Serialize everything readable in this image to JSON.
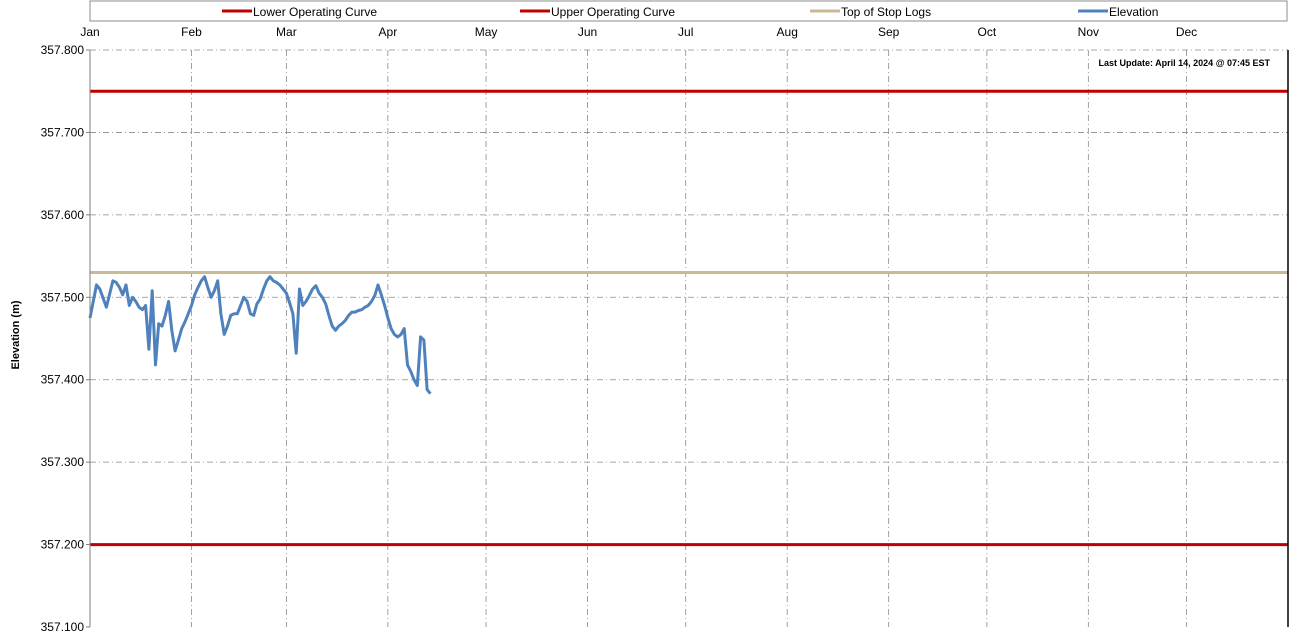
{
  "chart_data": {
    "type": "line",
    "ylabel": "Elevation (m)",
    "ylim": [
      357.1,
      357.8
    ],
    "y_ticks": [
      "357.800",
      "357.700",
      "357.600",
      "357.500",
      "357.400",
      "357.300",
      "357.200",
      "357.100"
    ],
    "months": [
      "Jan",
      "Feb",
      "Mar",
      "Apr",
      "May",
      "Jun",
      "Jul",
      "Aug",
      "Sep",
      "Oct",
      "Nov",
      "Dec"
    ],
    "annotation": "Last Update:  April 14, 2024 @ 07:45 EST",
    "grid": true,
    "legend_position": "top",
    "series": [
      {
        "name": "Lower Operating Curve",
        "color": "#c00000",
        "constant": 357.2
      },
      {
        "name": "Upper Operating Curve",
        "color": "#c00000",
        "constant": 357.75
      },
      {
        "name": "Top of Stop Logs",
        "color": "#c9b995",
        "constant": 357.53
      },
      {
        "name": "Elevation",
        "color": "#4f81bd",
        "points": [
          [
            "Jan 1",
            357.475
          ],
          [
            "Jan 3",
            357.515
          ],
          [
            "Jan 4",
            357.51
          ],
          [
            "Jan 6",
            357.488
          ],
          [
            "Jan 8",
            357.52
          ],
          [
            "Jan 9",
            357.518
          ],
          [
            "Jan 10",
            357.512
          ],
          [
            "Jan 11",
            357.503
          ],
          [
            "Jan 12",
            357.515
          ],
          [
            "Jan 13",
            357.49
          ],
          [
            "Jan 14",
            357.5
          ],
          [
            "Jan 15",
            357.495
          ],
          [
            "Jan 16",
            357.488
          ],
          [
            "Jan 17",
            357.485
          ],
          [
            "Jan 18",
            357.49
          ],
          [
            "Jan 19",
            357.437
          ],
          [
            "Jan 20",
            357.508
          ],
          [
            "Jan 21",
            357.418
          ],
          [
            "Jan 22",
            357.468
          ],
          [
            "Jan 23",
            357.465
          ],
          [
            "Jan 24",
            357.478
          ],
          [
            "Jan 25",
            357.495
          ],
          [
            "Jan 26",
            357.46
          ],
          [
            "Jan 27",
            357.435
          ],
          [
            "Jan 28",
            357.448
          ],
          [
            "Jan 29",
            357.462
          ],
          [
            "Jan 30",
            357.47
          ],
          [
            "Jan 31",
            357.48
          ],
          [
            "Feb 1",
            357.49
          ],
          [
            "Feb 2",
            357.503
          ],
          [
            "Feb 3",
            357.512
          ],
          [
            "Feb 4",
            357.52
          ],
          [
            "Feb 5",
            357.525
          ],
          [
            "Feb 6",
            357.512
          ],
          [
            "Feb 7",
            357.5
          ],
          [
            "Feb 8",
            357.508
          ],
          [
            "Feb 9",
            357.52
          ],
          [
            "Feb 10",
            357.48
          ],
          [
            "Feb 11",
            357.455
          ],
          [
            "Feb 12",
            357.465
          ],
          [
            "Feb 13",
            357.478
          ],
          [
            "Feb 14",
            357.48
          ],
          [
            "Feb 15",
            357.48
          ],
          [
            "Feb 16",
            357.49
          ],
          [
            "Feb 17",
            357.5
          ],
          [
            "Feb 18",
            357.495
          ],
          [
            "Feb 19",
            357.48
          ],
          [
            "Feb 20",
            357.478
          ],
          [
            "Feb 21",
            357.492
          ],
          [
            "Feb 22",
            357.498
          ],
          [
            "Feb 23",
            357.51
          ],
          [
            "Feb 24",
            357.52
          ],
          [
            "Feb 25",
            357.525
          ],
          [
            "Feb 26",
            357.52
          ],
          [
            "Feb 27",
            357.518
          ],
          [
            "Feb 28",
            357.515
          ],
          [
            "Feb 29",
            357.51
          ],
          [
            "Mar 1",
            357.505
          ],
          [
            "Mar 2",
            357.493
          ],
          [
            "Mar 3",
            357.48
          ],
          [
            "Mar 4",
            357.432
          ],
          [
            "Mar 5",
            357.51
          ],
          [
            "Mar 6",
            357.49
          ],
          [
            "Mar 7",
            357.495
          ],
          [
            "Mar 8",
            357.502
          ],
          [
            "Mar 9",
            357.51
          ],
          [
            "Mar 10",
            357.514
          ],
          [
            "Mar 11",
            357.505
          ],
          [
            "Mar 12",
            357.5
          ],
          [
            "Mar 13",
            357.492
          ],
          [
            "Mar 14",
            357.478
          ],
          [
            "Mar 15",
            357.465
          ],
          [
            "Mar 16",
            357.46
          ],
          [
            "Mar 17",
            357.465
          ],
          [
            "Mar 18",
            357.468
          ],
          [
            "Mar 19",
            357.472
          ],
          [
            "Mar 20",
            357.478
          ],
          [
            "Mar 21",
            357.482
          ],
          [
            "Mar 22",
            357.482
          ],
          [
            "Mar 23",
            357.484
          ],
          [
            "Mar 24",
            357.485
          ],
          [
            "Mar 25",
            357.488
          ],
          [
            "Mar 26",
            357.49
          ],
          [
            "Mar 27",
            357.495
          ],
          [
            "Mar 28",
            357.502
          ],
          [
            "Mar 29",
            357.515
          ],
          [
            "Mar 30",
            357.503
          ],
          [
            "Mar 31",
            357.49
          ],
          [
            "Apr 1",
            357.475
          ],
          [
            "Apr 2",
            357.462
          ],
          [
            "Apr 3",
            357.455
          ],
          [
            "Apr 4",
            357.452
          ],
          [
            "Apr 5",
            357.455
          ],
          [
            "Apr 6",
            357.462
          ],
          [
            "Apr 7",
            357.418
          ],
          [
            "Apr 8",
            357.41
          ],
          [
            "Apr 9",
            357.4
          ],
          [
            "Apr 10",
            357.393
          ],
          [
            "Apr 11",
            357.452
          ],
          [
            "Apr 12",
            357.448
          ],
          [
            "Apr 13",
            357.388
          ],
          [
            "Apr 14",
            357.383
          ]
        ]
      }
    ]
  }
}
